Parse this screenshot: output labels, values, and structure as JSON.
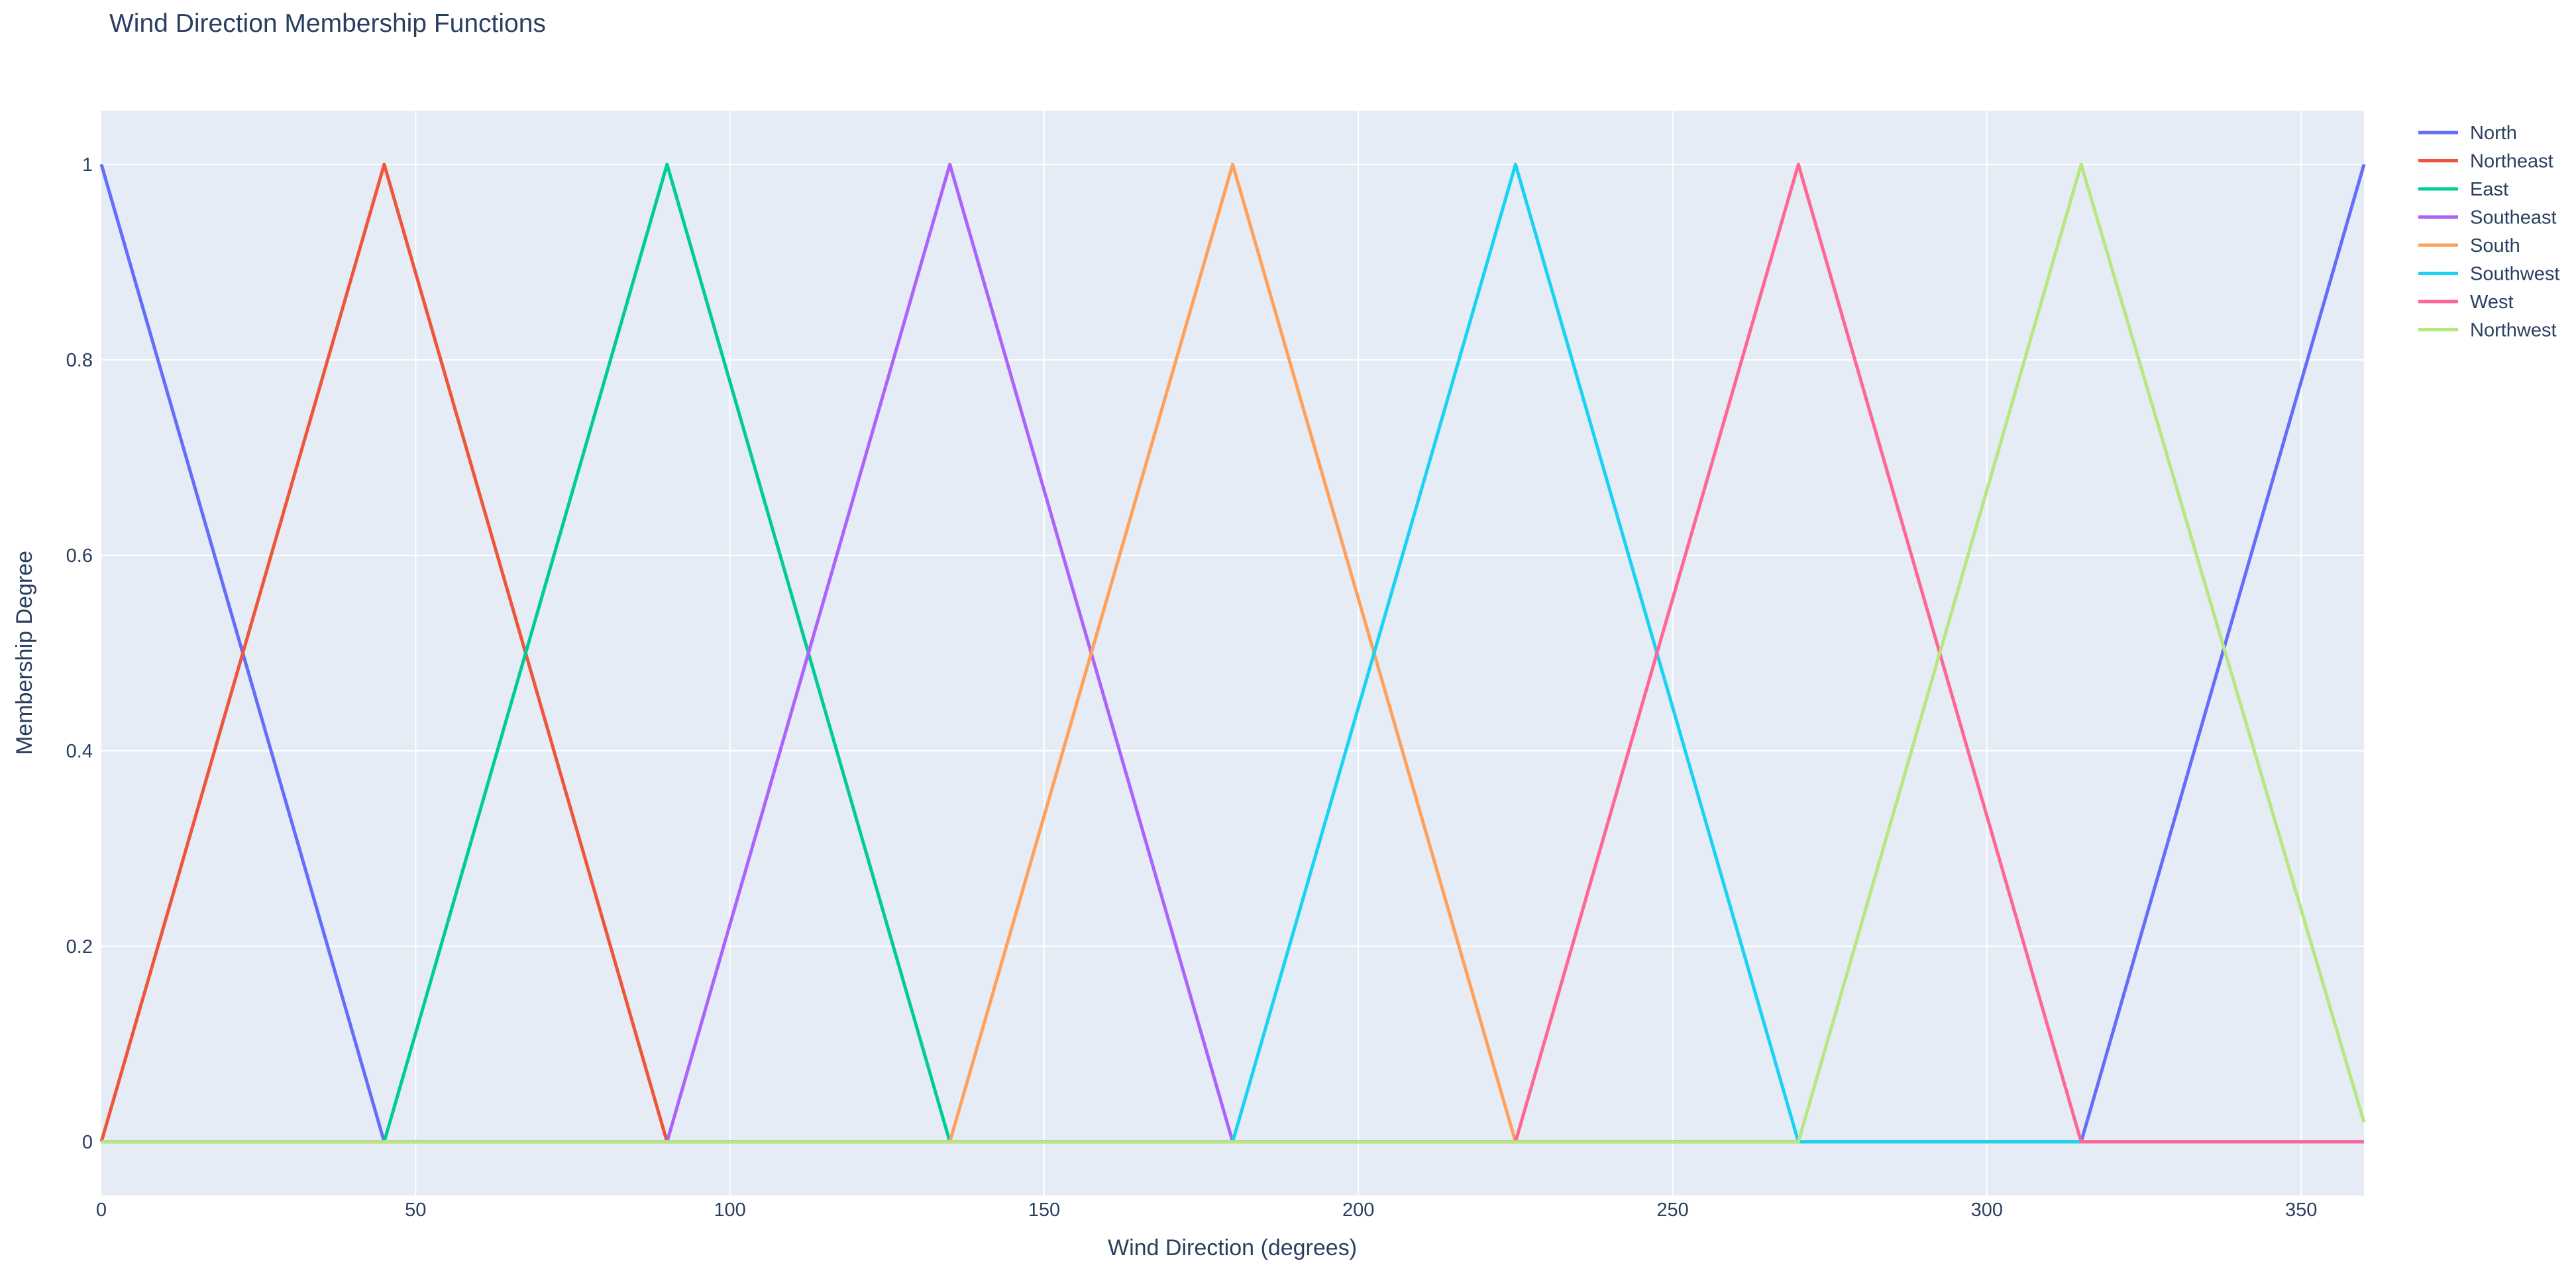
{
  "chart_data": {
    "type": "line",
    "title": "Wind Direction Membership Functions",
    "xlabel": "Wind Direction (degrees)",
    "ylabel": "Membership Degree",
    "xlim": [
      0,
      360
    ],
    "ylim": [
      -0.055,
      1.055
    ],
    "xticks": [
      0,
      50,
      100,
      150,
      200,
      250,
      300,
      350
    ],
    "yticks": [
      0,
      0.2,
      0.4,
      0.6,
      0.8,
      1
    ],
    "grid": true,
    "plot_background": "#e5ecf6",
    "legend_position": "top-right",
    "series": [
      {
        "name": "North",
        "color": "#636efa",
        "x": [
          0,
          45,
          315,
          360
        ],
        "y": [
          1,
          0,
          0,
          1
        ]
      },
      {
        "name": "Northeast",
        "color": "#ef553b",
        "x": [
          0,
          45,
          90,
          360
        ],
        "y": [
          0,
          1,
          0,
          0
        ]
      },
      {
        "name": "East",
        "color": "#00cc96",
        "x": [
          0,
          45,
          90,
          135,
          360
        ],
        "y": [
          0,
          0,
          1,
          0,
          0
        ]
      },
      {
        "name": "Southeast",
        "color": "#ab63fa",
        "x": [
          0,
          90,
          135,
          180,
          360
        ],
        "y": [
          0,
          0,
          1,
          0,
          0
        ]
      },
      {
        "name": "South",
        "color": "#ffa15a",
        "x": [
          0,
          135,
          180,
          225,
          360
        ],
        "y": [
          0,
          0,
          1,
          0,
          0
        ]
      },
      {
        "name": "Southwest",
        "color": "#19d3f3",
        "x": [
          0,
          180,
          225,
          270,
          360
        ],
        "y": [
          0,
          0,
          1,
          0,
          0
        ]
      },
      {
        "name": "West",
        "color": "#ff6692",
        "x": [
          0,
          225,
          270,
          315,
          360
        ],
        "y": [
          0,
          0,
          1,
          0,
          0
        ]
      },
      {
        "name": "Northwest",
        "color": "#b6e880",
        "x": [
          0,
          270,
          315,
          360
        ],
        "y": [
          0,
          0,
          1,
          0.02
        ]
      }
    ]
  }
}
